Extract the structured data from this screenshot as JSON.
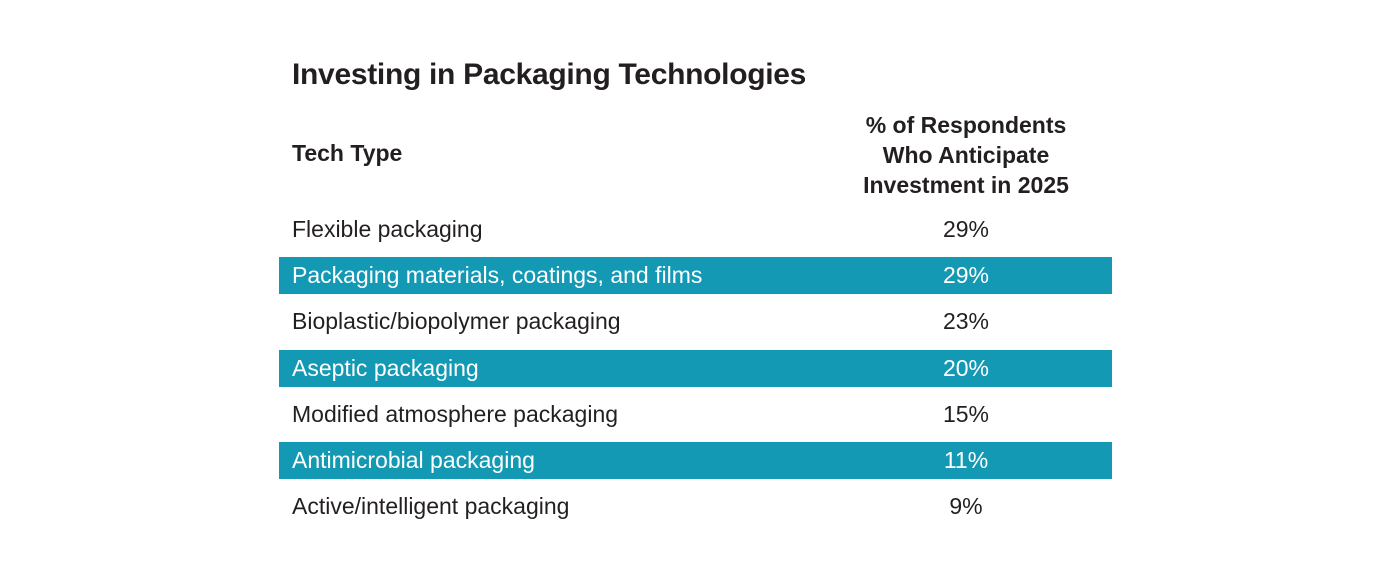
{
  "chart_data": {
    "type": "table",
    "title": "Investing in Packaging Technologies",
    "columns": [
      "Tech Type",
      "% of Respondents Who Anticipate Investment in 2025"
    ],
    "header_lines": [
      "% of Respondents",
      "Who Anticipate",
      "Investment in 2025"
    ],
    "rows": [
      {
        "label": "Flexible packaging",
        "value": "29%"
      },
      {
        "label": "Packaging materials, coatings, and films",
        "value": "29%"
      },
      {
        "label": "Bioplastic/biopolymer packaging",
        "value": "23%"
      },
      {
        "label": "Aseptic packaging",
        "value": "20%"
      },
      {
        "label": "Modified atmosphere packaging",
        "value": "15%"
      },
      {
        "label": "Antimicrobial packaging",
        "value": "11%"
      },
      {
        "label": "Active/intelligent packaging",
        "value": "9%"
      }
    ],
    "band_color": "#1499b5"
  }
}
